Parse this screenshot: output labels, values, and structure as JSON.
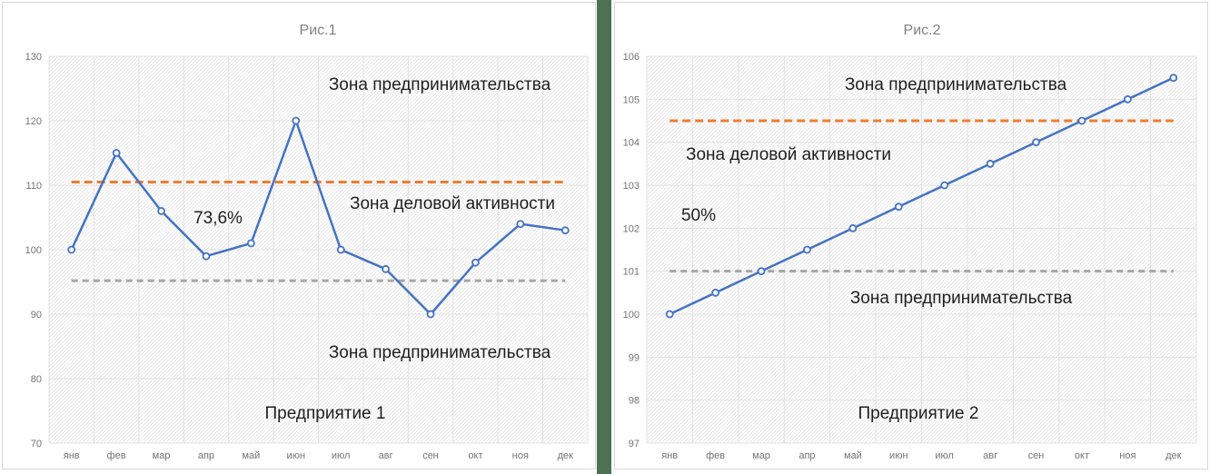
{
  "page": {
    "background": "#ffffff",
    "divider_color": "#4d7152",
    "panel_border_color": "#d6d6d6",
    "grid_color": "#e2e2e2",
    "tick_text_color": "#737373",
    "title_text_color": "#808080"
  },
  "chart_data": [
    {
      "type": "line",
      "title": "Рис.1",
      "categories": [
        "янв",
        "фев",
        "мар",
        "апр",
        "май",
        "июн",
        "июл",
        "авг",
        "сен",
        "окт",
        "ноя",
        "дек"
      ],
      "series": [
        {
          "name": "Предприятие 1",
          "values": [
            100,
            115,
            106,
            99,
            101,
            120,
            100,
            97,
            90,
            98,
            104,
            103
          ]
        }
      ],
      "ylim": [
        70,
        130
      ],
      "y_ticks": [
        130,
        120,
        110,
        100,
        90,
        80,
        70
      ],
      "grid": true,
      "legend": "none",
      "line_color": "#4472c4",
      "reference_lines": [
        {
          "name": "upper-threshold",
          "value": 110.5,
          "color": "#ed7d31",
          "style": "dashed",
          "dash": "9 5"
        },
        {
          "name": "lower-threshold",
          "value": 95.2,
          "color": "#a6a6a6",
          "style": "dashed",
          "dash": "7 5"
        }
      ],
      "annotations": {
        "zone_top": "Зона предпринимательства",
        "zone_mid": "Зона деловой активности",
        "percent_label": "73,6%",
        "zone_bottom": "Зона предпринимательства",
        "series_label": "Предприятие 1"
      }
    },
    {
      "type": "line",
      "title": "Рис.2",
      "categories": [
        "янв",
        "фев",
        "мар",
        "апр",
        "май",
        "июн",
        "июл",
        "авг",
        "сен",
        "окт",
        "ноя",
        "дек"
      ],
      "series": [
        {
          "name": "Предприятие 2",
          "values": [
            100,
            100.5,
            101,
            101.5,
            102,
            102.5,
            103,
            103.5,
            104,
            104.5,
            105,
            105.5
          ]
        }
      ],
      "ylim": [
        97,
        106
      ],
      "y_ticks": [
        106,
        105,
        104,
        103,
        102,
        101,
        100,
        99,
        98,
        97
      ],
      "grid": true,
      "legend": "none",
      "line_color": "#4472c4",
      "reference_lines": [
        {
          "name": "upper-threshold",
          "value": 104.5,
          "color": "#ed7d31",
          "style": "dashed",
          "dash": "9 5"
        },
        {
          "name": "lower-threshold",
          "value": 101,
          "color": "#a6a6a6",
          "style": "dashed",
          "dash": "7 5"
        }
      ],
      "annotations": {
        "zone_top": "Зона предпринимательства",
        "zone_mid": "Зона деловой активности",
        "percent_label": "50%",
        "zone_bottom": "Зона предпринимательства",
        "series_label": "Предприятие 2"
      }
    }
  ]
}
